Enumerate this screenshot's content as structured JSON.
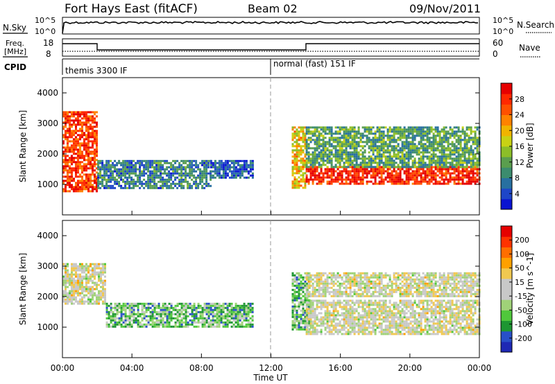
{
  "header": {
    "station": "Fort Hays East (fitACF)",
    "beam": "Beam 02",
    "date": "09/Nov/2011"
  },
  "noise_panel": {
    "left_label": "N.Sky",
    "right_label": "N.Search",
    "left_ticks": [
      "10^5",
      "10^0"
    ],
    "right_ticks": [
      "10^5",
      "10^0"
    ]
  },
  "freq_panel": {
    "left_label_line1": "Freq.",
    "left_label_line2": "[MHz]",
    "right_label": "Nave",
    "left_ticks": [
      "18",
      "8"
    ],
    "right_ticks": [
      "60",
      "0"
    ]
  },
  "cpid_panel": {
    "label": "CPID",
    "modes": [
      {
        "name": "themis 3300 IF",
        "start_hour": 0
      },
      {
        "name": "normal (fast) 151 IF",
        "start_hour": 12
      }
    ]
  },
  "chart_data": [
    {
      "type": "heatmap",
      "title": "",
      "parameter": "Power",
      "ylabel": "Slant Range [km]",
      "ylim": [
        0,
        4500
      ],
      "yticks": [
        "4000",
        "3000",
        "2000",
        "1000"
      ],
      "xlim": [
        "00:00",
        "24:00"
      ],
      "colorbar_label": "Power [dB]",
      "colorbar_ticks": [
        "28",
        "24",
        "20",
        "16",
        "12",
        "8",
        "4"
      ],
      "colors": [
        "#0a14d2",
        "#1e46c8",
        "#2870a0",
        "#3c8c6e",
        "#5a9e4e",
        "#8cbe28",
        "#c8d214",
        "#f0b400",
        "#ff8200",
        "#ff5000",
        "#ff2800",
        "#e60000"
      ],
      "regions": [
        {
          "t": [
            0.0,
            2.0
          ],
          "r": [
            800,
            3400
          ],
          "level": 0.85
        },
        {
          "t": [
            2.0,
            8.5
          ],
          "r": [
            900,
            1800
          ],
          "level": 0.25
        },
        {
          "t": [
            8.5,
            11.0
          ],
          "r": [
            1200,
            1800
          ],
          "level": 0.15
        },
        {
          "t": [
            13.2,
            14.0
          ],
          "r": [
            900,
            2900
          ],
          "level": 0.6
        },
        {
          "t": [
            14.0,
            24.0
          ],
          "r": [
            1000,
            1600
          ],
          "level": 0.9
        },
        {
          "t": [
            14.0,
            24.0
          ],
          "r": [
            1600,
            2900
          ],
          "level": 0.35
        }
      ]
    },
    {
      "type": "heatmap",
      "title": "",
      "parameter": "Velocity",
      "ylabel": "Slant Range [km]",
      "ylim": [
        0,
        4500
      ],
      "yticks": [
        "4000",
        "3000",
        "2000",
        "1000"
      ],
      "xlim": [
        "00:00",
        "24:00"
      ],
      "colorbar_label": "Velocity [m s^-1]",
      "colorbar_ticks": [
        "200",
        "100",
        "50",
        "15",
        "-15",
        "-50",
        "-100",
        "-200"
      ],
      "colors": [
        "#1e28b4",
        "#2850c8",
        "#1e9632",
        "#50c83c",
        "#a0d278",
        "#c8c8c8",
        "#c8c8c8",
        "#f0c850",
        "#ffa000",
        "#ff6e00",
        "#ff3200",
        "#e60000"
      ],
      "regions": [
        {
          "t": [
            0.0,
            2.5
          ],
          "r": [
            1800,
            3100
          ],
          "level": 0.5
        },
        {
          "t": [
            2.5,
            11.0
          ],
          "r": [
            1000,
            1800
          ],
          "level": 0.3
        },
        {
          "t": [
            13.2,
            14.2
          ],
          "r": [
            900,
            2800
          ],
          "level": 0.3
        },
        {
          "t": [
            14.0,
            24.0
          ],
          "r": [
            800,
            1900
          ],
          "level": 0.5
        },
        {
          "t": [
            14.0,
            24.0
          ],
          "r": [
            2000,
            2800
          ],
          "level": 0.5
        }
      ]
    }
  ],
  "x_axis": {
    "ticks": [
      "00:00",
      "04:00",
      "08:00",
      "12:00",
      "16:00",
      "20:00",
      "00:00"
    ],
    "label": "Time UT"
  }
}
